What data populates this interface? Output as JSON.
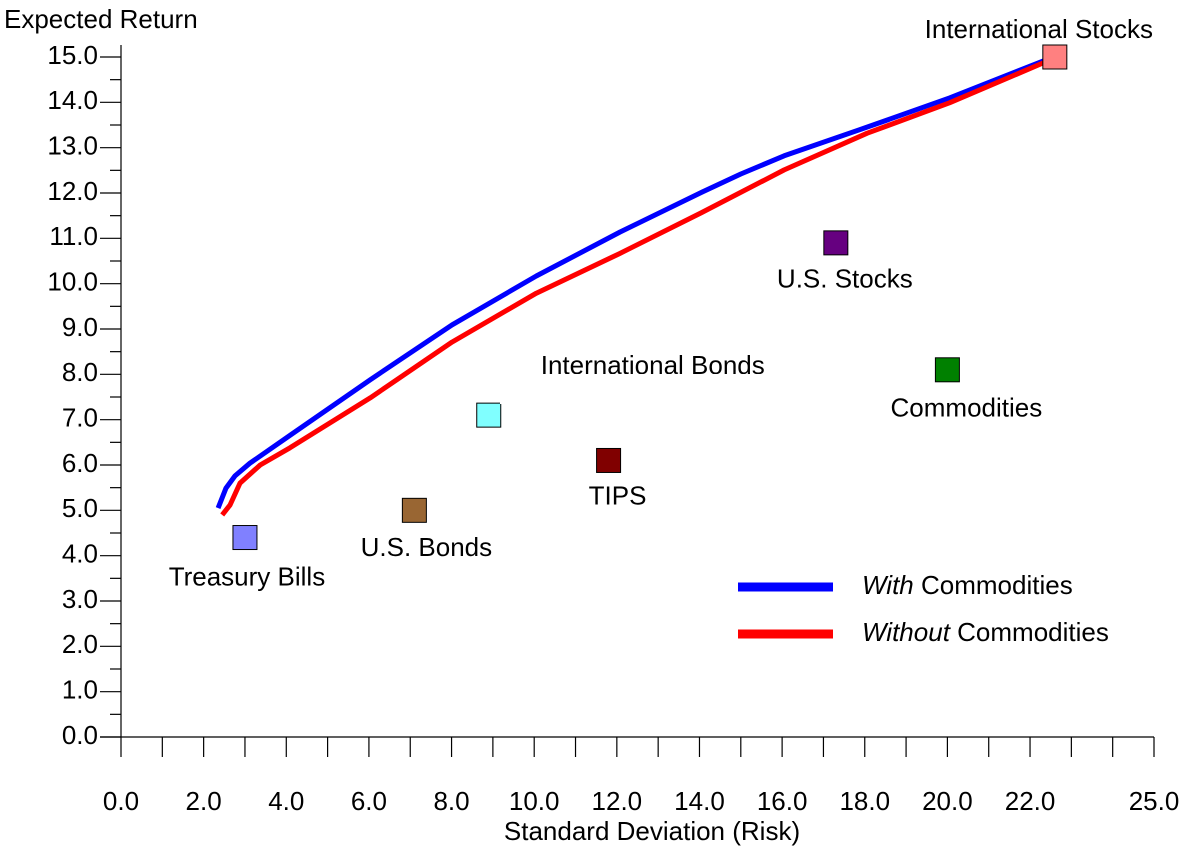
{
  "chart_data": {
    "type": "scatter",
    "x_label": "Standard Deviation (Risk)",
    "y_label": "Expected Return",
    "xlim": [
      0,
      25
    ],
    "ylim": [
      0,
      15
    ],
    "xticks": [
      {
        "value": 0,
        "label": "0.0"
      },
      {
        "value": 2,
        "label": "2.0"
      },
      {
        "value": 4,
        "label": "4.0"
      },
      {
        "value": 6,
        "label": "6.0"
      },
      {
        "value": 8,
        "label": "8.0"
      },
      {
        "value": 10,
        "label": "10.0"
      },
      {
        "value": 12,
        "label": "12.0"
      },
      {
        "value": 14,
        "label": "14.0"
      },
      {
        "value": 16,
        "label": "16.0"
      },
      {
        "value": 18,
        "label": "18.0"
      },
      {
        "value": 20,
        "label": "20.0"
      },
      {
        "value": 22,
        "label": "22.0"
      },
      {
        "value": 25,
        "label": "25.0"
      }
    ],
    "x_minor_ticks": [
      1,
      3,
      5,
      7,
      9,
      11,
      13,
      15,
      17,
      19,
      21,
      23,
      24
    ],
    "yticks": [
      {
        "value": 0,
        "label": "0.0"
      },
      {
        "value": 1,
        "label": "1.0"
      },
      {
        "value": 2,
        "label": "2.0"
      },
      {
        "value": 3,
        "label": "3.0"
      },
      {
        "value": 4,
        "label": "4.0"
      },
      {
        "value": 5,
        "label": "5.0"
      },
      {
        "value": 6,
        "label": "6.0"
      },
      {
        "value": 7,
        "label": "7.0"
      },
      {
        "value": 8,
        "label": "8.0"
      },
      {
        "value": 9,
        "label": "9.0"
      },
      {
        "value": 10,
        "label": "10.0"
      },
      {
        "value": 11,
        "label": "11.0"
      },
      {
        "value": 12,
        "label": "12.0"
      },
      {
        "value": 13,
        "label": "13.0"
      },
      {
        "value": 14,
        "label": "14.0"
      },
      {
        "value": 15,
        "label": "15.0"
      }
    ],
    "y_minor_ticks": [
      0.5,
      1.5,
      2.5,
      3.5,
      4.5,
      5.5,
      6.5,
      7.5,
      8.5,
      9.5,
      10.5,
      11.5,
      12.5,
      13.5,
      14.5
    ],
    "points": [
      {
        "label": "Treasury Bills",
        "x": 3.0,
        "y": 4.4,
        "color": "#8080ff"
      },
      {
        "label": "U.S. Bonds",
        "x": 7.1,
        "y": 5.0,
        "color": "#996633"
      },
      {
        "label": "International Bonds",
        "x": 8.9,
        "y": 7.1,
        "color": "#80ffff"
      },
      {
        "label": "TIPS",
        "x": 11.8,
        "y": 6.1,
        "color": "#800000"
      },
      {
        "label": "U.S. Stocks",
        "x": 17.3,
        "y": 10.9,
        "color": "#660080"
      },
      {
        "label": "Commodities",
        "x": 20.0,
        "y": 8.1,
        "color": "#008000"
      },
      {
        "label": "International Stocks",
        "x": 22.6,
        "y": 15.0,
        "color": "#ff8080"
      }
    ],
    "series": [
      {
        "name": "With Commodities",
        "color": "#0000ff",
        "x": [
          2.35,
          2.54,
          2.76,
          3.12,
          4.1,
          6.03,
          8.01,
          10.05,
          12.08,
          14.06,
          15.0,
          16.05,
          18.08,
          20.06,
          22.37
        ],
        "values": [
          5.05,
          5.49,
          5.76,
          6.04,
          6.66,
          7.88,
          9.09,
          10.17,
          11.14,
          12.02,
          12.42,
          12.82,
          13.46,
          14.1,
          14.93
        ]
      },
      {
        "name": "Without Commodities",
        "color": "#ff0000",
        "x": [
          2.45,
          2.64,
          2.88,
          3.37,
          4.09,
          6.03,
          8.01,
          10.05,
          12.06,
          14.04,
          16.05,
          18.06,
          20.05,
          22.37
        ],
        "values": [
          4.9,
          5.12,
          5.6,
          6.0,
          6.38,
          7.48,
          8.71,
          9.79,
          10.66,
          11.56,
          12.51,
          13.32,
          13.99,
          14.89
        ]
      }
    ]
  }
}
